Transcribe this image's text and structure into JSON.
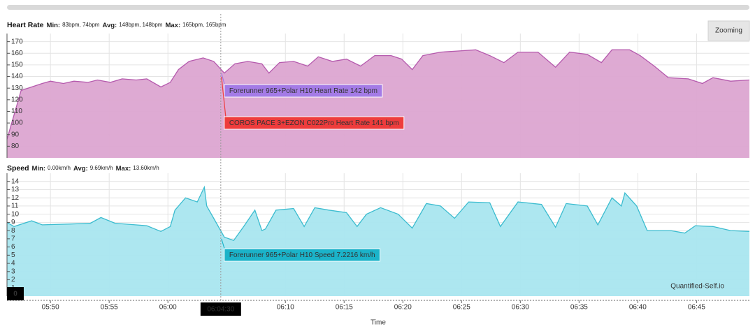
{
  "zoom_button": "Zooming",
  "watermark": "Quantified-Self.io",
  "cursor": {
    "x": {
      "value": 364.5,
      "label": "06:04:30"
    },
    "y": 0
  },
  "chart_data": [
    {
      "type": "area",
      "title": "Heart Rate",
      "stats": [
        {
          "label": "Min:",
          "value": "83bpm, 74bpm"
        },
        {
          "label": "Avg:",
          "value": "148bpm, 148bpm"
        },
        {
          "label": "Max:",
          "value": "165bpm, 165bpm"
        }
      ],
      "x": [
        346.3,
        347.5,
        348.4,
        349.3,
        350,
        351.1,
        352,
        353.2,
        354,
        355.1,
        356.1,
        357.3,
        358.2,
        359.4,
        360.2,
        360.9,
        361.8,
        363,
        363.9,
        364.8,
        365.7,
        366.8,
        368,
        368.6,
        369.5,
        370.7,
        371.9,
        372.8,
        374,
        375.2,
        376.4,
        377.6,
        379,
        379.9,
        380.8,
        381.7,
        383.2,
        384.7,
        386.2,
        387.4,
        388.6,
        389.8,
        391.5,
        393,
        394.2,
        395.7,
        396.9,
        397.8,
        399.3,
        400.2,
        401.4,
        402.6,
        404.3,
        405.5,
        406.4,
        407.9,
        409.5
      ],
      "series": [
        {
          "color": "#b55aad",
          "fill": "#dca5d1",
          "values": [
            86,
            128,
            131,
            134,
            136,
            134,
            136,
            135,
            137,
            135,
            138,
            137,
            138,
            131,
            135,
            146,
            153,
            156,
            153,
            143,
            151,
            153,
            151,
            143,
            152,
            153,
            149,
            157,
            153,
            155,
            149,
            158,
            158,
            155,
            146,
            158,
            161,
            162,
            163,
            158,
            152,
            161,
            161,
            148,
            161,
            159,
            152,
            163,
            163,
            158,
            149,
            139,
            138,
            134,
            139,
            136,
            137
          ]
        }
      ],
      "xlim": [
        346.3,
        409.5
      ],
      "ylim": [
        70,
        177
      ],
      "yticks": [
        80,
        90,
        100,
        110,
        120,
        130,
        140,
        150,
        160,
        170
      ],
      "grid": true,
      "tooltips": [
        {
          "text": "Forerunner 965+Polar H10 Heart Rate 142 bpm",
          "color": "#a47be6"
        },
        {
          "text": "COROS PACE 3+EZON C022Pro Heart Rate 141 bpm",
          "color": "#ee3c3c"
        }
      ]
    },
    {
      "type": "area",
      "title": "Speed",
      "stats": [
        {
          "label": "Min:",
          "value": "0.00km/h"
        },
        {
          "label": "Avg:",
          "value": "9.69km/h"
        },
        {
          "label": "Max:",
          "value": "13.60km/h"
        }
      ],
      "x": [
        346.3,
        346.9,
        348.4,
        349.3,
        351.7,
        353.4,
        354.3,
        355.5,
        358.2,
        359.4,
        360.2,
        360.6,
        361.5,
        362.5,
        363.1,
        363.3,
        363.9,
        364.8,
        365.6,
        366.5,
        367.4,
        368,
        368.3,
        369.2,
        370.7,
        371.6,
        372.5,
        373.7,
        375.2,
        376.1,
        376.9,
        378.1,
        379.6,
        380.8,
        382,
        383.2,
        384.4,
        385.6,
        387.4,
        388.3,
        389.8,
        391.8,
        393,
        393.9,
        395.7,
        396.6,
        397.8,
        398.6,
        398.9,
        399.9,
        400.8,
        402.8,
        404,
        404.9,
        406.4,
        407.9,
        409.5
      ],
      "series": [
        {
          "color": "#3bbccf",
          "fill": "#a9e6ef",
          "values": [
            9,
            8.5,
            9.2,
            8.7,
            8.8,
            8.9,
            9.6,
            8.9,
            8.6,
            7.9,
            8.5,
            10.5,
            12,
            11.5,
            13.3,
            11,
            9.5,
            7.2,
            6.8,
            8.6,
            10.5,
            8,
            8.2,
            10.5,
            10.7,
            8.5,
            10.8,
            10.5,
            10.2,
            8.5,
            10,
            10.8,
            10,
            8.3,
            11.3,
            11,
            9.5,
            11.5,
            11.4,
            8.5,
            11.5,
            11.2,
            8.4,
            11.3,
            11,
            8.7,
            12,
            11,
            12.6,
            11,
            8,
            8,
            7.7,
            8.6,
            8.5,
            8,
            7.9
          ]
        }
      ],
      "xlim": [
        346.3,
        409.5
      ],
      "ylim": [
        0,
        15
      ],
      "yticks": [
        1,
        2,
        3,
        4,
        5,
        6,
        7,
        8,
        9,
        10,
        11,
        12,
        13,
        14
      ],
      "grid": true,
      "xticks": [
        {
          "value": 350,
          "label": "05:50"
        },
        {
          "value": 355,
          "label": "05:55"
        },
        {
          "value": 360,
          "label": "06:00"
        },
        {
          "value": 370,
          "label": "06:10"
        },
        {
          "value": 375,
          "label": "06:15"
        },
        {
          "value": 380,
          "label": "06:20"
        },
        {
          "value": 385,
          "label": "06:25"
        },
        {
          "value": 390,
          "label": "06:30"
        },
        {
          "value": 395,
          "label": "06:35"
        },
        {
          "value": 400,
          "label": "06:40"
        },
        {
          "value": 405,
          "label": "06:45"
        }
      ],
      "xlabel": "Time",
      "tooltips": [
        {
          "text": "Forerunner 965+Polar H10 Speed 7.2216 km/h",
          "color": "#1bb3c9"
        }
      ]
    }
  ]
}
